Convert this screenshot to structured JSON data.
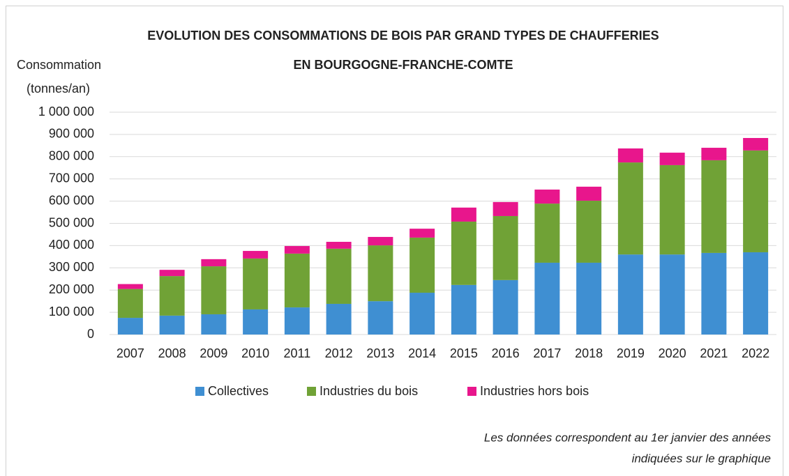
{
  "chart_data": {
    "type": "stacked_bar",
    "title": [
      "EVOLUTION DES CONSOMMATIONS DE BOIS PAR GRAND TYPES DE CHAUFFERIES",
      "EN BOURGOGNE-FRANCHE-COMTE"
    ],
    "y_axis_label": [
      "Consommation",
      "(tonnes/an)"
    ],
    "note": [
      "Les données correspondent au 1er janvier des années",
      "indiquées sur le graphique"
    ],
    "categories": [
      "2007",
      "2008",
      "2009",
      "2010",
      "2011",
      "2012",
      "2013",
      "2014",
      "2015",
      "2016",
      "2017",
      "2018",
      "2019",
      "2020",
      "2021",
      "2022"
    ],
    "series": [
      {
        "name": "Collectives",
        "color": "#3f8fd2",
        "values": [
          75000,
          85000,
          91000,
          113000,
          122000,
          138000,
          150000,
          188000,
          223000,
          245000,
          323000,
          323000,
          360000,
          360000,
          367000,
          370000
        ]
      },
      {
        "name": "Industries du bois",
        "color": "#70a236",
        "values": [
          130000,
          178000,
          216000,
          229000,
          242000,
          248000,
          251000,
          248000,
          285000,
          288000,
          266000,
          279000,
          414000,
          402000,
          417000,
          458000
        ]
      },
      {
        "name": "Industries hors bois",
        "color": "#e8168c",
        "values": [
          22000,
          28000,
          32000,
          34000,
          34000,
          31000,
          38000,
          40000,
          63000,
          63000,
          63000,
          63000,
          63000,
          56000,
          56000,
          56000
        ]
      }
    ],
    "ylim": [
      0,
      1000000
    ],
    "yticks": [
      0,
      {
        "value": 100000,
        "label": "100 000"
      },
      {
        "value": 200000,
        "label": "200 000"
      },
      {
        "value": 300000,
        "label": "300 000"
      },
      {
        "value": 400000,
        "label": "400 000"
      },
      {
        "value": 500000,
        "label": "500 000"
      },
      {
        "value": 600000,
        "label": "600 000"
      },
      {
        "value": 700000,
        "label": "700 000"
      },
      {
        "value": 800000,
        "label": "800 000"
      },
      {
        "value": 900000,
        "label": "900 000"
      },
      {
        "value": 1000000,
        "label": "1 000 000"
      }
    ],
    "grid": true,
    "legend": "bottom"
  }
}
